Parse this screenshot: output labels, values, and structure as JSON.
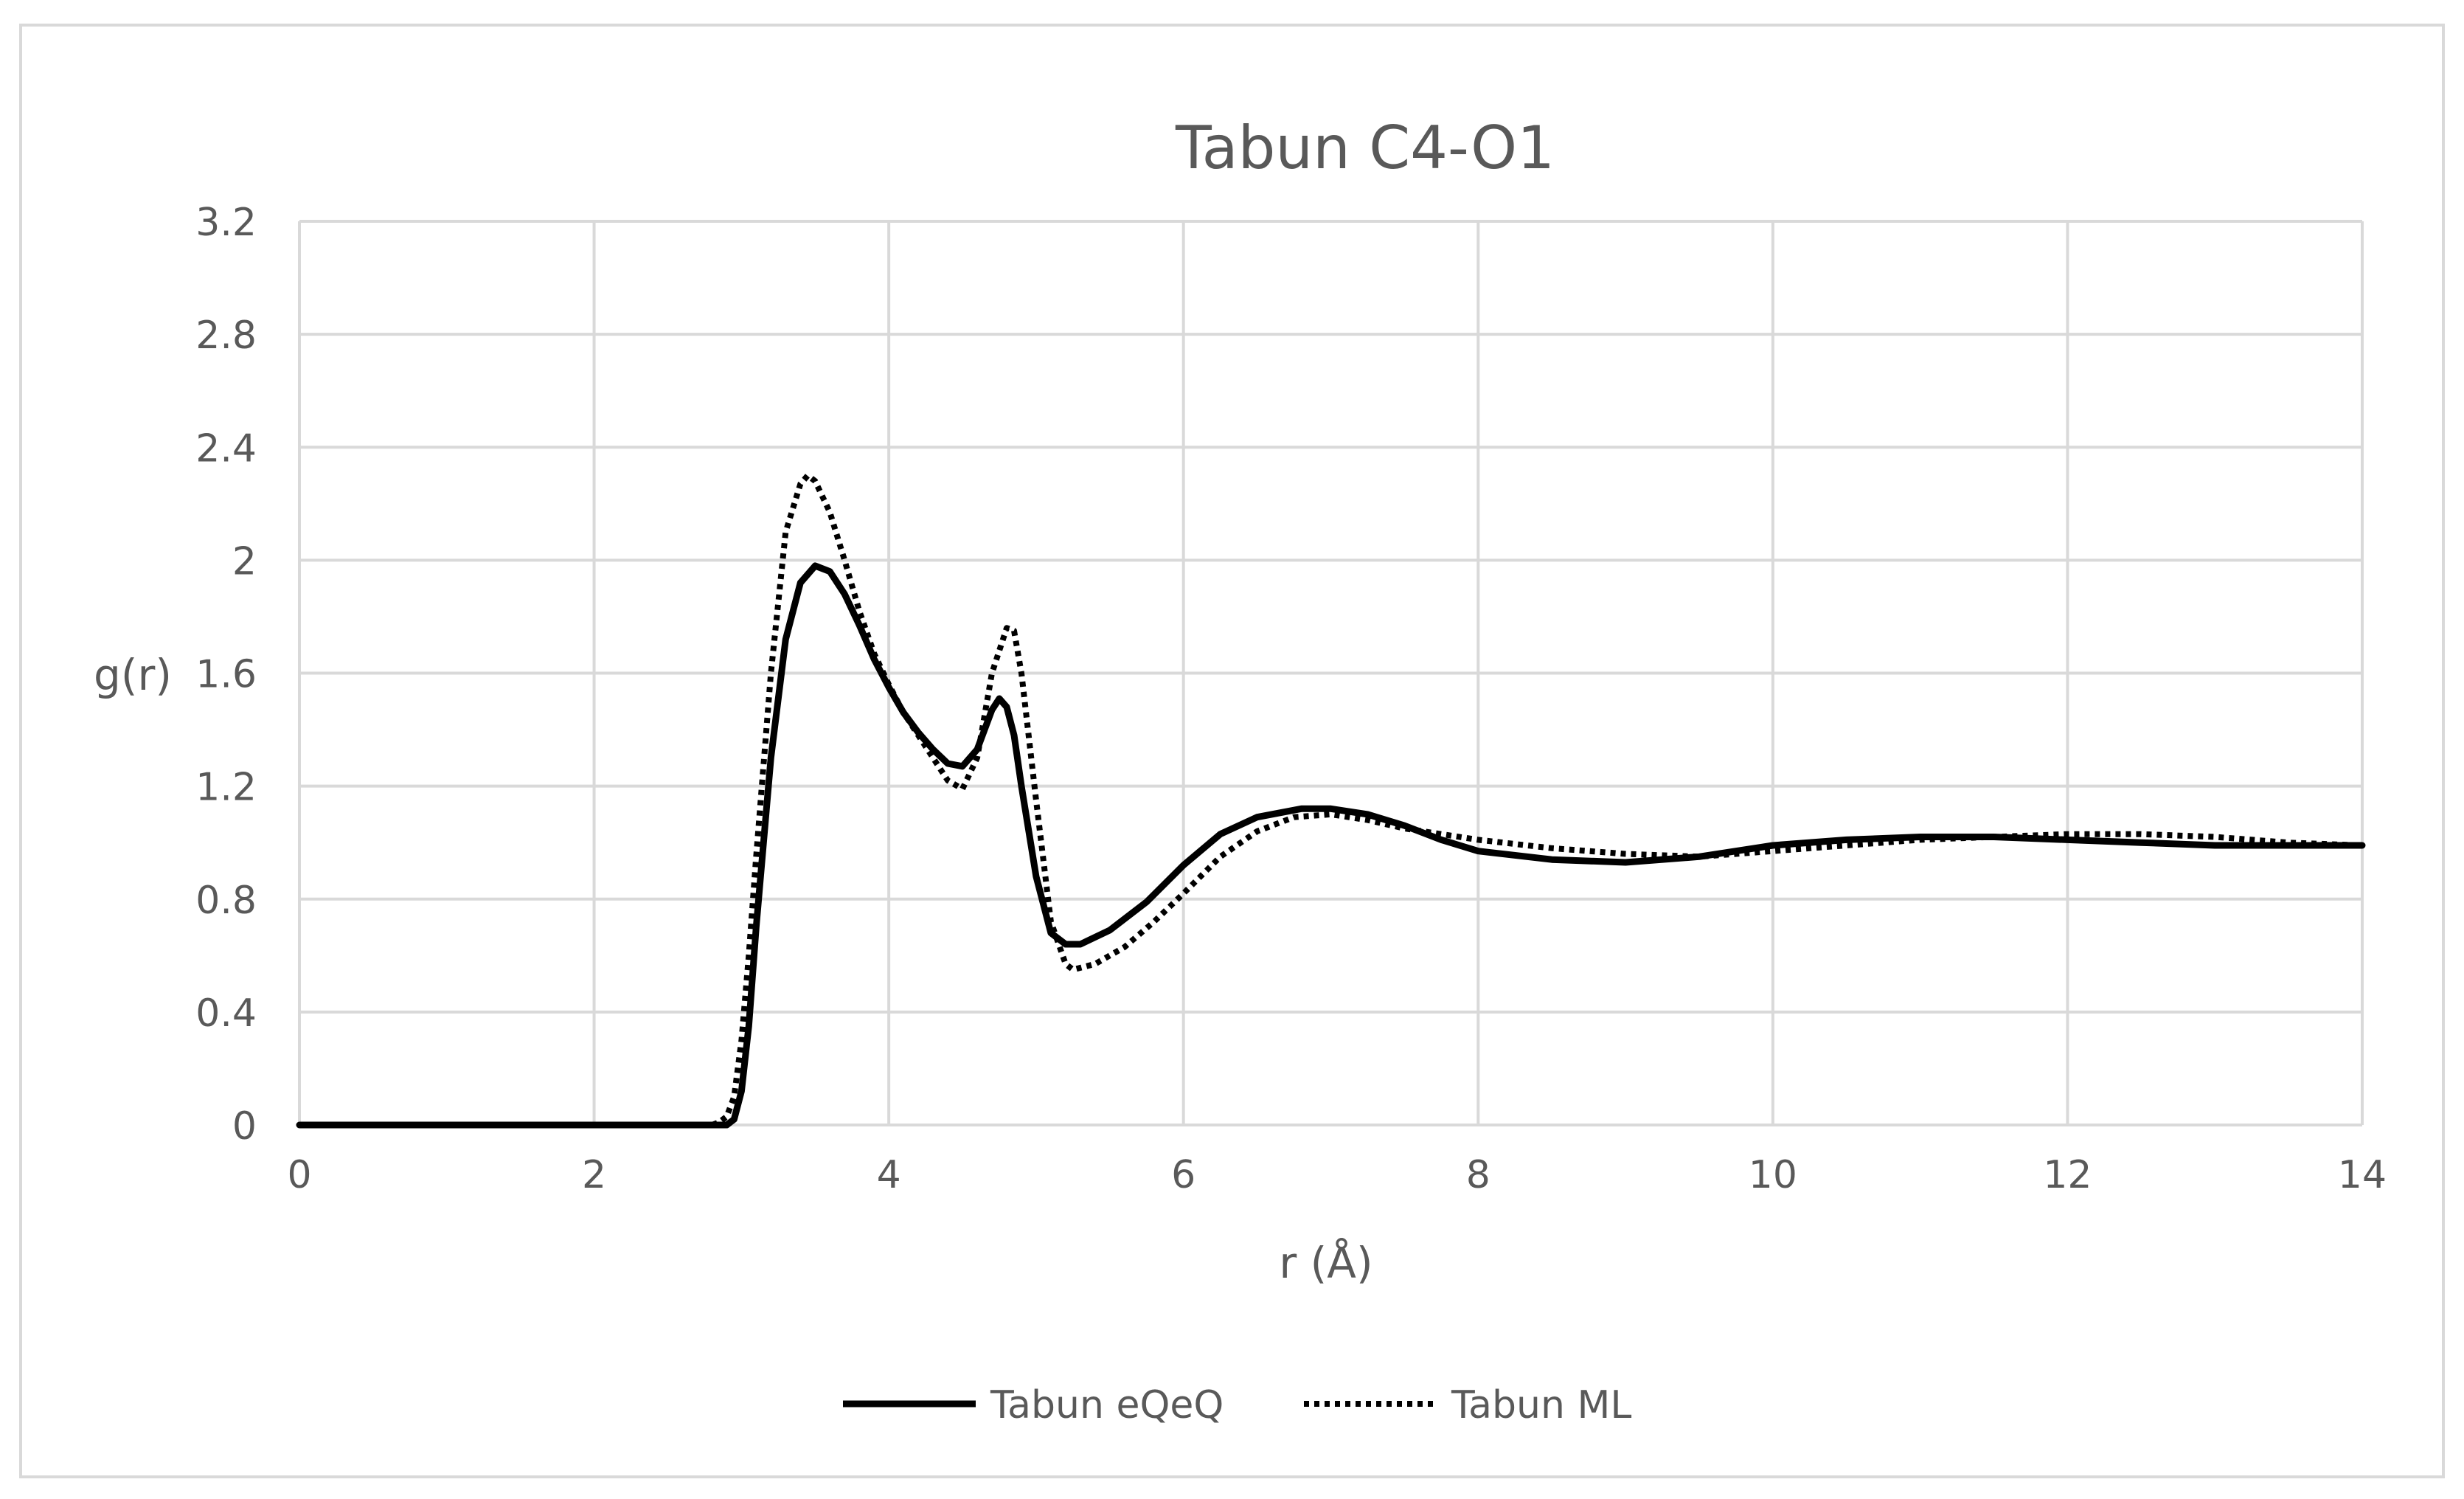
{
  "chart_data": {
    "type": "line",
    "title": "Tabun C4-O1",
    "xlabel": "r (Å)",
    "ylabel": "g(r)",
    "xlim": [
      0,
      14
    ],
    "ylim": [
      0,
      3.2
    ],
    "x_ticks": [
      0,
      2,
      4,
      6,
      8,
      10,
      12,
      14
    ],
    "x_tick_labels": [
      "0",
      "2",
      "4",
      "6",
      "8",
      "10",
      "12",
      "14"
    ],
    "y_ticks": [
      0,
      0.4,
      0.8,
      1.2,
      1.6,
      2.0,
      2.4,
      2.8,
      3.2
    ],
    "y_tick_labels": [
      "0",
      "0.4",
      "0.8",
      "1.2",
      "1.6",
      "2",
      "2.4",
      "2.8",
      "3.2"
    ],
    "grid": true,
    "legend_position": "bottom",
    "series": [
      {
        "name": "Tabun eQeQ",
        "style": "solid",
        "color": "#000000",
        "points": [
          [
            0,
            0
          ],
          [
            2.8,
            0
          ],
          [
            2.9,
            0.0
          ],
          [
            2.95,
            0.02
          ],
          [
            3.0,
            0.12
          ],
          [
            3.05,
            0.35
          ],
          [
            3.1,
            0.7
          ],
          [
            3.2,
            1.3
          ],
          [
            3.3,
            1.72
          ],
          [
            3.4,
            1.92
          ],
          [
            3.5,
            1.98
          ],
          [
            3.6,
            1.96
          ],
          [
            3.7,
            1.88
          ],
          [
            3.8,
            1.77
          ],
          [
            3.9,
            1.65
          ],
          [
            4.0,
            1.55
          ],
          [
            4.1,
            1.46
          ],
          [
            4.2,
            1.39
          ],
          [
            4.3,
            1.33
          ],
          [
            4.4,
            1.28
          ],
          [
            4.5,
            1.27
          ],
          [
            4.6,
            1.33
          ],
          [
            4.7,
            1.47
          ],
          [
            4.75,
            1.51
          ],
          [
            4.8,
            1.48
          ],
          [
            4.85,
            1.38
          ],
          [
            4.9,
            1.2
          ],
          [
            5.0,
            0.88
          ],
          [
            5.1,
            0.68
          ],
          [
            5.2,
            0.64
          ],
          [
            5.3,
            0.64
          ],
          [
            5.5,
            0.69
          ],
          [
            5.75,
            0.79
          ],
          [
            6.0,
            0.92
          ],
          [
            6.25,
            1.03
          ],
          [
            6.5,
            1.09
          ],
          [
            6.8,
            1.12
          ],
          [
            7.0,
            1.12
          ],
          [
            7.25,
            1.1
          ],
          [
            7.5,
            1.06
          ],
          [
            7.75,
            1.01
          ],
          [
            8.0,
            0.97
          ],
          [
            8.5,
            0.94
          ],
          [
            9.0,
            0.93
          ],
          [
            9.5,
            0.95
          ],
          [
            10.0,
            0.99
          ],
          [
            10.5,
            1.01
          ],
          [
            11.0,
            1.02
          ],
          [
            11.5,
            1.02
          ],
          [
            12.0,
            1.01
          ],
          [
            12.5,
            1.0
          ],
          [
            13.0,
            0.99
          ],
          [
            13.5,
            0.99
          ],
          [
            14.0,
            0.99
          ]
        ]
      },
      {
        "name": "Tabun ML",
        "style": "dotted",
        "color": "#000000",
        "points": [
          [
            0,
            0
          ],
          [
            2.8,
            0
          ],
          [
            2.85,
            0.01
          ],
          [
            2.9,
            0.03
          ],
          [
            2.95,
            0.1
          ],
          [
            3.0,
            0.3
          ],
          [
            3.05,
            0.6
          ],
          [
            3.1,
            0.95
          ],
          [
            3.2,
            1.6
          ],
          [
            3.3,
            2.1
          ],
          [
            3.4,
            2.27
          ],
          [
            3.45,
            2.3
          ],
          [
            3.5,
            2.28
          ],
          [
            3.6,
            2.17
          ],
          [
            3.7,
            2.0
          ],
          [
            3.8,
            1.82
          ],
          [
            3.9,
            1.67
          ],
          [
            4.0,
            1.56
          ],
          [
            4.1,
            1.46
          ],
          [
            4.2,
            1.38
          ],
          [
            4.3,
            1.3
          ],
          [
            4.4,
            1.22
          ],
          [
            4.5,
            1.19
          ],
          [
            4.6,
            1.3
          ],
          [
            4.7,
            1.6
          ],
          [
            4.8,
            1.76
          ],
          [
            4.85,
            1.75
          ],
          [
            4.9,
            1.6
          ],
          [
            5.0,
            1.15
          ],
          [
            5.1,
            0.72
          ],
          [
            5.2,
            0.57
          ],
          [
            5.25,
            0.55
          ],
          [
            5.4,
            0.57
          ],
          [
            5.6,
            0.63
          ],
          [
            5.8,
            0.72
          ],
          [
            6.0,
            0.82
          ],
          [
            6.25,
            0.95
          ],
          [
            6.5,
            1.04
          ],
          [
            6.75,
            1.09
          ],
          [
            7.0,
            1.1
          ],
          [
            7.25,
            1.08
          ],
          [
            7.5,
            1.05
          ],
          [
            8.0,
            1.01
          ],
          [
            8.5,
            0.98
          ],
          [
            9.0,
            0.96
          ],
          [
            9.5,
            0.95
          ],
          [
            10.0,
            0.97
          ],
          [
            10.5,
            0.99
          ],
          [
            11.0,
            1.01
          ],
          [
            11.5,
            1.02
          ],
          [
            12.0,
            1.03
          ],
          [
            12.5,
            1.03
          ],
          [
            13.0,
            1.02
          ],
          [
            13.5,
            1.0
          ],
          [
            14.0,
            0.99
          ]
        ]
      }
    ]
  }
}
